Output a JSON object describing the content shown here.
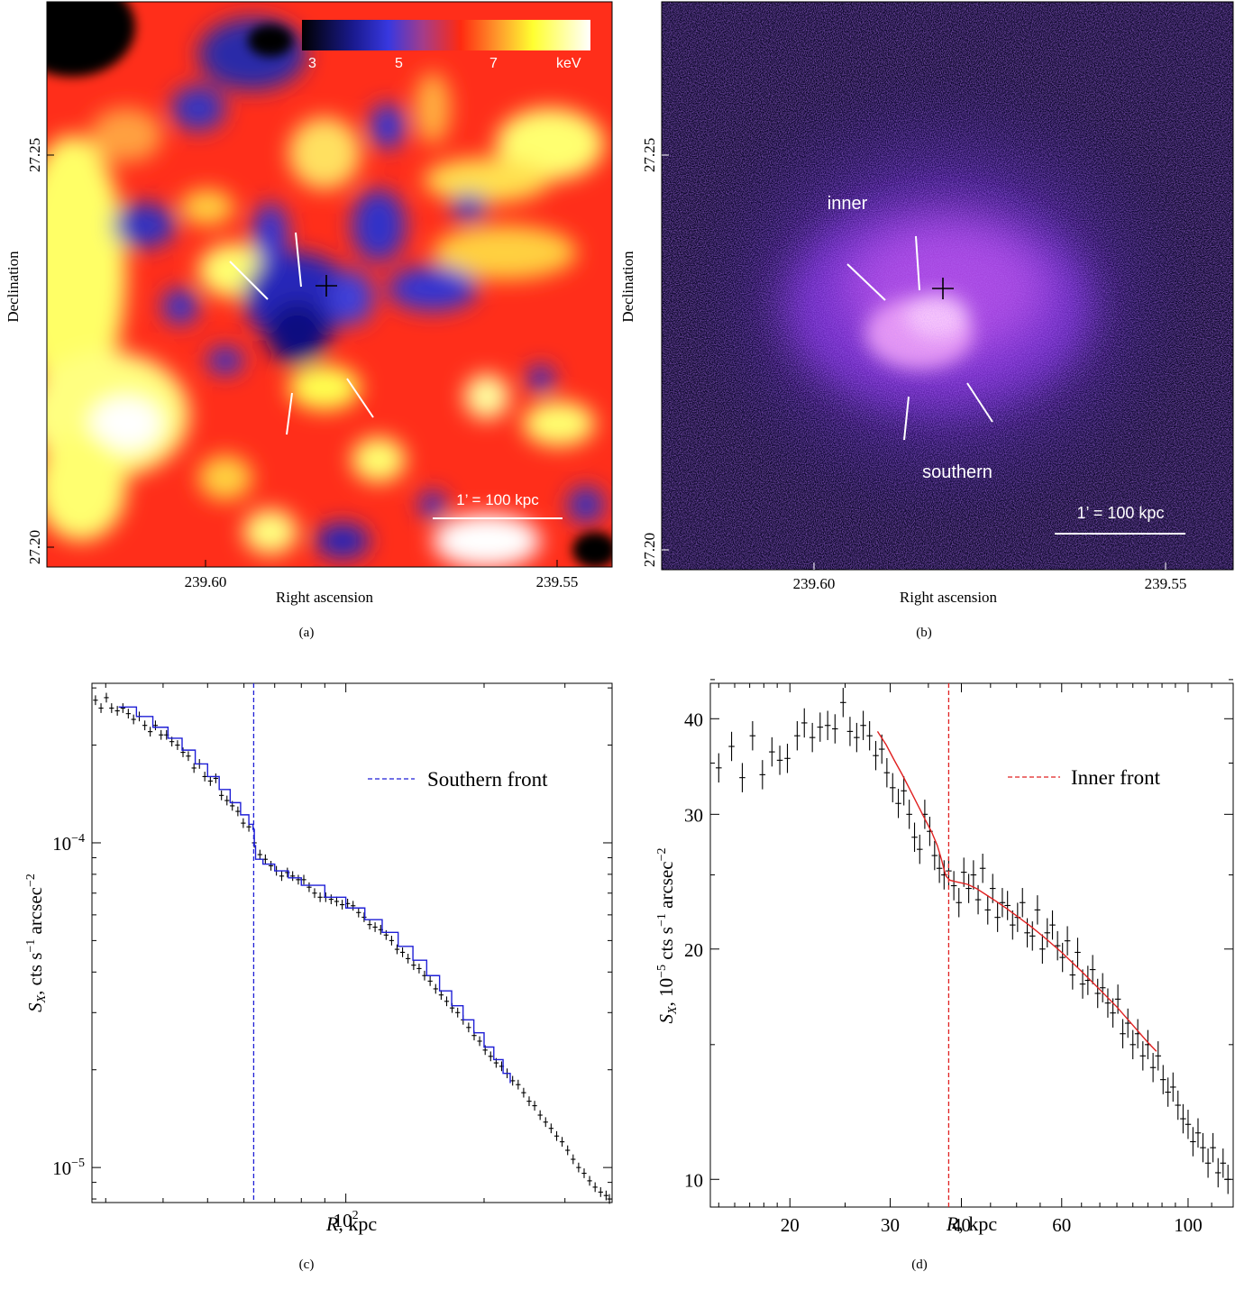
{
  "panels": {
    "a": {
      "caption": "(a)",
      "xlabel": "Right ascension",
      "ylabel": "Declination",
      "xticks": [
        "239.60",
        "239.55"
      ],
      "yticks": [
        "27.25",
        "27.20"
      ],
      "colorbar_labels": [
        "3",
        "5",
        "7",
        "keV"
      ],
      "scalebar_label": "1’ = 100 kpc"
    },
    "b": {
      "caption": "(b)",
      "xlabel": "Right ascension",
      "ylabel": "Declination",
      "xticks": [
        "239.60",
        "239.55"
      ],
      "yticks": [
        "27.25",
        "27.20"
      ],
      "label_inner": "inner",
      "label_southern": "southern",
      "scalebar_label": "1’ = 100 kpc"
    }
  },
  "chart_data": [
    {
      "panel": "c",
      "type": "scatter",
      "caption": "(c)",
      "xlabel_italic": "R",
      "xlabel_rest": ", kpc",
      "ylabel_main": "S",
      "ylabel_sub": "X",
      "ylabel_rest": ",  cts s",
      "ylabel_sup1": "−1",
      "ylabel_rest2": " arcsec",
      "ylabel_sup2": "−2",
      "xscale": "log",
      "yscale": "log",
      "xlim": [
        28,
        380
      ],
      "ylim": [
        7.8e-06,
        0.00031
      ],
      "xtick_labels": [
        {
          "base": "10",
          "exp": "2",
          "value": 100
        }
      ],
      "ytick_labels": [
        {
          "base": "10",
          "exp": "−4",
          "value": 0.0001
        },
        {
          "base": "10",
          "exp": "−5",
          "value": 1e-05
        }
      ],
      "legend": {
        "label": "Southern front",
        "color": "#1f1fd6",
        "style": "dashed",
        "position": "top-right"
      },
      "front_x": 63,
      "model_color": "#1f1fd6",
      "points": [
        [
          28.5,
          0.000275
        ],
        [
          29.3,
          0.00026
        ],
        [
          30.1,
          0.00028
        ],
        [
          30.9,
          0.00026
        ],
        [
          31.8,
          0.000255
        ],
        [
          32.7,
          0.00026
        ],
        [
          33.6,
          0.00025
        ],
        [
          34.5,
          0.00024
        ],
        [
          35.5,
          0.000245
        ],
        [
          36.5,
          0.00023
        ],
        [
          37.5,
          0.00022
        ],
        [
          38.5,
          0.00023
        ],
        [
          39.6,
          0.000215
        ],
        [
          40.7,
          0.000215
        ],
        [
          41.8,
          0.000205
        ],
        [
          43.0,
          0.0002
        ],
        [
          44.2,
          0.00019
        ],
        [
          45.4,
          0.000185
        ],
        [
          46.7,
          0.00017
        ],
        [
          48.0,
          0.000175
        ],
        [
          49.3,
          0.00016
        ],
        [
          50.7,
          0.000155
        ],
        [
          52.1,
          0.000158
        ],
        [
          53.6,
          0.00014
        ],
        [
          55.1,
          0.000135
        ],
        [
          56.6,
          0.00013
        ],
        [
          58.2,
          0.000125
        ],
        [
          59.8,
          0.000115
        ],
        [
          61.5,
          0.000112
        ],
        [
          63.2,
          0.0001
        ],
        [
          65.0,
          9.2e-05
        ],
        [
          66.8,
          8.9e-05
        ],
        [
          68.7,
          8.5e-05
        ],
        [
          70.6,
          8.2e-05
        ],
        [
          72.5,
          7.9e-05
        ],
        [
          74.6,
          8.1e-05
        ],
        [
          76.6,
          7.9e-05
        ],
        [
          78.8,
          7.7e-05
        ],
        [
          81.0,
          7.7e-05
        ],
        [
          83.2,
          7.3e-05
        ],
        [
          85.5,
          7e-05
        ],
        [
          87.9,
          6.8e-05
        ],
        [
          90.4,
          6.8e-05
        ],
        [
          92.9,
          6.7e-05
        ],
        [
          95.5,
          6.6e-05
        ],
        [
          98.2,
          6.45e-05
        ],
        [
          100.9,
          6.5e-05
        ],
        [
          103.7,
          6.4e-05
        ],
        [
          106.6,
          6.1e-05
        ],
        [
          109.6,
          5.9e-05
        ],
        [
          112.7,
          5.6e-05
        ],
        [
          115.8,
          5.5e-05
        ],
        [
          119.1,
          5.4e-05
        ],
        [
          122.4,
          5.2e-05
        ],
        [
          125.8,
          5e-05
        ],
        [
          129.3,
          4.7e-05
        ],
        [
          132.9,
          4.6e-05
        ],
        [
          136.6,
          4.4e-05
        ],
        [
          140.5,
          4.2e-05
        ],
        [
          144.4,
          4.1e-05
        ],
        [
          148.4,
          3.9e-05
        ],
        [
          152.6,
          3.75e-05
        ],
        [
          156.9,
          3.55e-05
        ],
        [
          161.3,
          3.4e-05
        ],
        [
          165.8,
          3.25e-05
        ],
        [
          170.4,
          3.1e-05
        ],
        [
          175.2,
          3e-05
        ],
        [
          180.1,
          2.85e-05
        ],
        [
          185.1,
          2.7e-05
        ],
        [
          190.3,
          2.55e-05
        ],
        [
          195.6,
          2.45e-05
        ],
        [
          201.1,
          2.3e-05
        ],
        [
          206.7,
          2.2e-05
        ],
        [
          212.5,
          2.1e-05
        ],
        [
          218.4,
          2.05e-05
        ],
        [
          224.5,
          1.95e-05
        ],
        [
          230.8,
          1.85e-05
        ],
        [
          237.3,
          1.8e-05
        ],
        [
          243.9,
          1.7e-05
        ],
        [
          250.7,
          1.6e-05
        ],
        [
          257.7,
          1.55e-05
        ],
        [
          264.9,
          1.45e-05
        ],
        [
          272.3,
          1.38e-05
        ],
        [
          279.9,
          1.32e-05
        ],
        [
          287.8,
          1.25e-05
        ],
        [
          295.8,
          1.2e-05
        ],
        [
          304.1,
          1.13e-05
        ],
        [
          312.6,
          1.06e-05
        ],
        [
          321.3,
          1e-05
        ],
        [
          330.3,
          9.6e-06
        ],
        [
          339.5,
          9.1e-06
        ],
        [
          349.0,
          8.7e-06
        ],
        [
          358.8,
          8.4e-06
        ],
        [
          368.8,
          8.2e-06
        ],
        [
          375.0,
          8e-06
        ]
      ],
      "model": [
        [
          32,
          0.000262
        ],
        [
          35,
          0.000245
        ],
        [
          38,
          0.000227
        ],
        [
          41,
          0.00021
        ],
        [
          44,
          0.000193
        ],
        [
          47,
          0.000175
        ],
        [
          50,
          0.00016
        ],
        [
          53,
          0.000146
        ],
        [
          56,
          0.000133
        ],
        [
          59,
          0.000122
        ],
        [
          61.5,
          0.000114
        ],
        [
          62.8,
          0.00011
        ],
        [
          63.2,
          9.8e-05
        ],
        [
          63.6,
          8.9e-05
        ],
        [
          66,
          8.6e-05
        ],
        [
          70,
          8.2e-05
        ],
        [
          75,
          7.8e-05
        ],
        [
          80,
          7.4e-05
        ],
        [
          90,
          6.8e-05
        ],
        [
          100,
          6.3e-05
        ],
        [
          110,
          5.8e-05
        ],
        [
          120,
          5.3e-05
        ],
        [
          130,
          4.8e-05
        ],
        [
          140,
          4.35e-05
        ],
        [
          150,
          3.9e-05
        ],
        [
          160,
          3.5e-05
        ],
        [
          170,
          3.15e-05
        ],
        [
          180,
          2.85e-05
        ],
        [
          190,
          2.6e-05
        ],
        [
          200,
          2.35e-05
        ],
        [
          210,
          2.15e-05
        ],
        [
          220,
          1.95e-05
        ],
        [
          228,
          1.82e-05
        ]
      ]
    },
    {
      "panel": "d",
      "type": "scatter",
      "caption": "(d)",
      "xlabel_italic": "R",
      "xlabel_rest": ", kpc",
      "ylabel_main": "S",
      "ylabel_sub": "X",
      "ylabel_rest": ", 10",
      "ylabel_sup0": "−5",
      "ylabel_rest1": " cts s",
      "ylabel_sup1": "−1",
      "ylabel_rest2": " arcsec",
      "ylabel_sup2": "−2",
      "xscale": "log",
      "yscale": "log",
      "xlim": [
        14.5,
        120
      ],
      "ylim": [
        9.2,
        44.5
      ],
      "xtick_labels": [
        {
          "label": "20",
          "value": 20
        },
        {
          "label": "30",
          "value": 30
        },
        {
          "label": "40",
          "value": 40
        },
        {
          "label": "60",
          "value": 60
        },
        {
          "label": "100",
          "value": 100
        }
      ],
      "ytick_labels": [
        {
          "label": "10",
          "value": 10
        },
        {
          "label": "20",
          "value": 20
        },
        {
          "label": "30",
          "value": 30
        },
        {
          "label": "40",
          "value": 40
        }
      ],
      "legend": {
        "label": "Inner front",
        "color": "#e02020",
        "style": "dashed",
        "position": "top-right"
      },
      "front_x": 38,
      "model_color": "#e02020",
      "points": [
        [
          15.0,
          34.5
        ],
        [
          15.8,
          36.8
        ],
        [
          16.5,
          33.5
        ],
        [
          17.2,
          38.0
        ],
        [
          17.9,
          33.8
        ],
        [
          18.6,
          36.2
        ],
        [
          19.2,
          35.3
        ],
        [
          19.8,
          35.5
        ],
        [
          20.6,
          38.0
        ],
        [
          21.2,
          39.5
        ],
        [
          21.9,
          37.8
        ],
        [
          22.6,
          39.0
        ],
        [
          23.3,
          39.2
        ],
        [
          24.0,
          38.8
        ],
        [
          24.8,
          42.0
        ],
        [
          25.5,
          38.5
        ],
        [
          26.2,
          37.8
        ],
        [
          26.9,
          39.2
        ],
        [
          27.6,
          38.0
        ],
        [
          28.3,
          35.8
        ],
        [
          29.0,
          36.5
        ],
        [
          29.6,
          34.0
        ],
        [
          30.3,
          32.5
        ],
        [
          31.0,
          31.0
        ],
        [
          31.7,
          32.2
        ],
        [
          32.4,
          30.0
        ],
        [
          33.1,
          28.0
        ],
        [
          33.8,
          27.0
        ],
        [
          34.5,
          30.0
        ],
        [
          35.2,
          28.5
        ],
        [
          35.9,
          26.5
        ],
        [
          36.6,
          25.5
        ],
        [
          37.3,
          25.0
        ],
        [
          38.0,
          25.3
        ],
        [
          38.8,
          24.2
        ],
        [
          39.6,
          23.0
        ],
        [
          40.4,
          25.2
        ],
        [
          41.2,
          24.0
        ],
        [
          42.0,
          25.0
        ],
        [
          42.8,
          23.2
        ],
        [
          43.6,
          25.5
        ],
        [
          44.5,
          22.5
        ],
        [
          45.4,
          24.0
        ],
        [
          46.3,
          22.0
        ],
        [
          47.2,
          23.0
        ],
        [
          48.2,
          22.8
        ],
        [
          49.2,
          21.5
        ],
        [
          50.2,
          22.0
        ],
        [
          51.2,
          23.0
        ],
        [
          52.2,
          21.0
        ],
        [
          53.3,
          20.8
        ],
        [
          54.4,
          22.5
        ],
        [
          55.5,
          20.0
        ],
        [
          56.6,
          21.0
        ],
        [
          57.8,
          21.5
        ],
        [
          59.0,
          20.2
        ],
        [
          60.2,
          19.5
        ],
        [
          61.4,
          20.5
        ],
        [
          62.7,
          18.5
        ],
        [
          64.0,
          19.8
        ],
        [
          65.3,
          18.0
        ],
        [
          66.7,
          18.2
        ],
        [
          68.0,
          18.8
        ],
        [
          69.4,
          17.5
        ],
        [
          70.8,
          17.8
        ],
        [
          72.3,
          17.0
        ],
        [
          73.8,
          16.5
        ],
        [
          75.3,
          17.2
        ],
        [
          76.8,
          15.5
        ],
        [
          78.4,
          16.0
        ],
        [
          80.0,
          15.0
        ],
        [
          81.6,
          15.5
        ],
        [
          83.3,
          14.5
        ],
        [
          85.0,
          15.0
        ],
        [
          86.8,
          14.0
        ],
        [
          88.6,
          14.5
        ],
        [
          90.4,
          13.5
        ],
        [
          92.2,
          13.0
        ],
        [
          94.1,
          13.2
        ],
        [
          96.0,
          12.5
        ],
        [
          98.0,
          12.0
        ],
        [
          100.0,
          11.8
        ],
        [
          102.0,
          11.2
        ],
        [
          104.1,
          11.5
        ],
        [
          106.2,
          11.0
        ],
        [
          108.4,
          10.5
        ],
        [
          110.6,
          11.0
        ],
        [
          112.9,
          10.2
        ],
        [
          115.2,
          10.5
        ],
        [
          117.5,
          10.0
        ]
      ],
      "model": [
        [
          28.5,
          38.5
        ],
        [
          29.5,
          37.0
        ],
        [
          30.5,
          35.3
        ],
        [
          31.5,
          33.8
        ],
        [
          32.5,
          32.3
        ],
        [
          33.5,
          30.9
        ],
        [
          34.5,
          29.6
        ],
        [
          35.5,
          28.4
        ],
        [
          36.3,
          27.3
        ],
        [
          36.9,
          26.2
        ],
        [
          37.3,
          25.4
        ],
        [
          37.6,
          24.9
        ],
        [
          38.2,
          24.6
        ],
        [
          39.0,
          24.5
        ],
        [
          40.0,
          24.4
        ],
        [
          41.0,
          24.3
        ],
        [
          42.5,
          24.0
        ],
        [
          44.0,
          23.6
        ],
        [
          46.0,
          23.1
        ],
        [
          48.0,
          22.6
        ],
        [
          50.0,
          22.1
        ],
        [
          53.0,
          21.4
        ],
        [
          56.0,
          20.7
        ],
        [
          60.0,
          19.8
        ],
        [
          65.0,
          18.7
        ],
        [
          70.0,
          17.7
        ],
        [
          75.0,
          16.8
        ],
        [
          80.0,
          15.9
        ],
        [
          85.0,
          15.1
        ],
        [
          88.0,
          14.7
        ]
      ]
    }
  ]
}
